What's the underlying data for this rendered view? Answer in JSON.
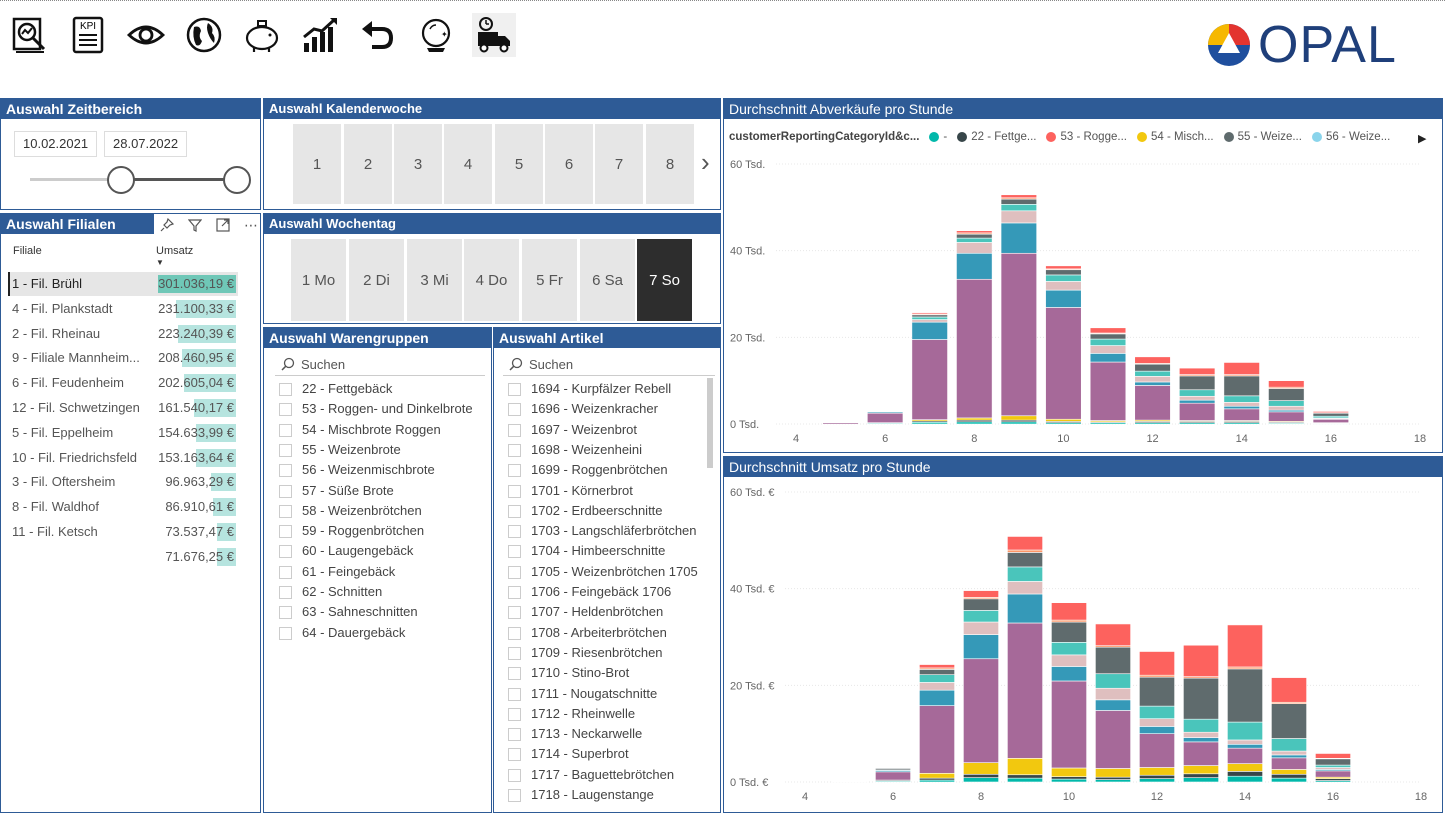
{
  "toolbar": {
    "icons": [
      "report-analysis-icon",
      "kpi-icon",
      "eye-icon",
      "globe-icon",
      "piggy-bank-icon",
      "growth-chart-icon",
      "undo-icon",
      "crystal-ball-icon",
      "delivery-truck-icon"
    ],
    "kpi_label": "KPI"
  },
  "logo": {
    "text": "OPAL",
    "colors": [
      "#f6b800",
      "#e3342f",
      "#1f4f9e"
    ]
  },
  "zeitbereich": {
    "title": "Auswahl Zeitbereich",
    "start": "10.02.2021",
    "end": "28.07.2022"
  },
  "kalenderwoche": {
    "title": "Auswahl Kalenderwoche",
    "weeks": [
      "1",
      "2",
      "3",
      "4",
      "5",
      "6",
      "7",
      "8"
    ],
    "next": "›"
  },
  "wochentag": {
    "title": "Auswahl Wochentag",
    "days": [
      "1 Mo",
      "2 Di",
      "3 Mi",
      "4 Do",
      "5 Fr",
      "6 Sa",
      "7 So"
    ],
    "selected": "7 So"
  },
  "filialen": {
    "title": "Auswahl Filialen",
    "col_filiale": "Filiale",
    "col_umsatz": "Umsatz",
    "rows": [
      {
        "name": "1 - Fil. Brühl",
        "umsatz": "301.036,19 €",
        "share": 1.0,
        "selected": true
      },
      {
        "name": "4 - Fil. Plankstadt",
        "umsatz": "231.100,33 €",
        "share": 0.77
      },
      {
        "name": "2 - Fil. Rheinau",
        "umsatz": "223.240,39 €",
        "share": 0.74
      },
      {
        "name": "9 - Filiale Mannheim...",
        "umsatz": "208.460,95 €",
        "share": 0.69
      },
      {
        "name": "6 - Fil. Feudenheim",
        "umsatz": "202.605,04 €",
        "share": 0.67
      },
      {
        "name": "12 - Fil. Schwetzingen",
        "umsatz": "161.540,17 €",
        "share": 0.54
      },
      {
        "name": "5 - Fil. Eppelheim",
        "umsatz": "154.633,99 €",
        "share": 0.51
      },
      {
        "name": "10 - Fil. Friedrichsfeld",
        "umsatz": "153.163,64 €",
        "share": 0.51
      },
      {
        "name": "3 - Fil. Oftersheim",
        "umsatz": "96.963,29 €",
        "share": 0.32
      },
      {
        "name": "8 - Fil. Waldhof",
        "umsatz": "86.910,61 €",
        "share": 0.29
      },
      {
        "name": "11 - Fil. Ketsch",
        "umsatz": "73.537,47 €",
        "share": 0.24
      },
      {
        "name": "",
        "umsatz": "71.676,25 €",
        "share": 0.24
      }
    ]
  },
  "warengruppen": {
    "title": "Auswahl Warengruppen",
    "search_placeholder": "Suchen",
    "items": [
      "22 - Fettgebäck",
      "53 - Roggen- und Dinkelbrote",
      "54 - Mischbrote Roggen",
      "55 - Weizenbrote",
      "56 - Weizenmischbrote",
      "57 - Süße Brote",
      "58 - Weizenbrötchen",
      "59 - Roggenbrötchen",
      "60 - Laugengebäck",
      "61 - Feingebäck",
      "62 - Schnitten",
      "63 - Sahneschnitten",
      "64 - Dauergebäck"
    ]
  },
  "artikel": {
    "title": "Auswahl Artikel",
    "search_placeholder": "Suchen",
    "items": [
      "1694 - Kurpfälzer Rebell",
      "1696 - Weizenkracher",
      "1697 - Weizenbrot",
      "1698 - Weizenheini",
      "1699 - Roggenbrötchen",
      "1701 - Körnerbrot",
      "1702 - Erdbeerschnitte",
      "1703 - Langschläferbrötchen",
      "1704 - Himbeerschnitte",
      "1705 - Weizenbrötchen 1705",
      "1706 - Feingebäck 1706",
      "1707 - Heldenbrötchen",
      "1708 - Arbeiterbrötchen",
      "1709 - Riesenbrötchen",
      "1710 - Stino-Brot",
      "1711 - Nougatschnitte",
      "1712 - Rheinwelle",
      "1713 - Neckarwelle",
      "1714 - Superbrot",
      "1717 - Baguettebrötchen",
      "1718 - Laugenstange"
    ]
  },
  "legend": {
    "title": "customerReportingCategoryId&c...",
    "items": [
      {
        "label": "-",
        "color": "#01b8aa"
      },
      {
        "label": "22 - Fettge...",
        "color": "#374649"
      },
      {
        "label": "53 - Rogge...",
        "color": "#fd625e"
      },
      {
        "label": "54 - Misch...",
        "color": "#f2c80f"
      },
      {
        "label": "55 - Weize...",
        "color": "#5f6b6d"
      },
      {
        "label": "56 - Weize...",
        "color": "#8ad4eb"
      }
    ],
    "more": "▶"
  },
  "chart_data": [
    {
      "type": "bar",
      "title": "Durchschnitt Abverkäufe pro Stunde",
      "x": [
        5,
        6,
        7,
        8,
        9,
        10,
        11,
        12,
        13,
        14,
        15,
        16
      ],
      "xticks": [
        "4",
        "6",
        "8",
        "10",
        "12",
        "14",
        "16",
        "18"
      ],
      "yticks": [
        "0 Tsd.",
        "20 Tsd.",
        "40 Tsd.",
        "60 Tsd."
      ],
      "ylim": [
        0,
        60000
      ],
      "xlim": [
        4,
        18
      ],
      "series_colors": [
        "#01b8aa",
        "#374649",
        "#f2c80f",
        "#a66999",
        "#3599b8",
        "#dfbfbf",
        "#4ac5bb",
        "#5f6b6d",
        "#fe9666",
        "#fd625e"
      ],
      "stacks": [
        [
          0,
          0,
          0,
          300,
          0,
          0,
          0,
          0,
          0,
          0
        ],
        [
          200,
          100,
          0,
          2200,
          300,
          0,
          100,
          100,
          0,
          0
        ],
        [
          400,
          300,
          300,
          18500,
          4000,
          600,
          600,
          500,
          200,
          300
        ],
        [
          500,
          400,
          500,
          32000,
          6000,
          2500,
          1000,
          900,
          300,
          500
        ],
        [
          500,
          400,
          1000,
          37500,
          7000,
          2800,
          1500,
          1200,
          300,
          700
        ],
        [
          300,
          300,
          500,
          25800,
          4000,
          2000,
          1500,
          1200,
          200,
          700
        ],
        [
          300,
          200,
          300,
          13500,
          2000,
          1800,
          1500,
          1200,
          200,
          1200
        ],
        [
          300,
          300,
          300,
          8000,
          800,
          1300,
          1200,
          1600,
          200,
          1500
        ],
        [
          300,
          300,
          200,
          4000,
          700,
          900,
          1500,
          3200,
          300,
          1500
        ],
        [
          300,
          300,
          200,
          2700,
          600,
          900,
          1500,
          4600,
          300,
          2800
        ],
        [
          200,
          200,
          200,
          2200,
          400,
          900,
          1300,
          2800,
          300,
          1500
        ],
        [
          100,
          100,
          100,
          800,
          100,
          200,
          400,
          700,
          100,
          300
        ]
      ]
    },
    {
      "type": "bar",
      "title": "Durchschnitt Umsatz pro Stunde",
      "x": [
        5,
        6,
        7,
        8,
        9,
        10,
        11,
        12,
        13,
        14,
        15,
        16
      ],
      "xticks": [
        "4",
        "6",
        "8",
        "10",
        "12",
        "14",
        "16",
        "18"
      ],
      "yticks": [
        "0 Tsd. €",
        "20 Tsd. €",
        "40 Tsd. €",
        "60 Tsd. €"
      ],
      "ylim": [
        0,
        60000
      ],
      "xlim": [
        4,
        18
      ],
      "series_colors": [
        "#01b8aa",
        "#374649",
        "#f2c80f",
        "#a66999",
        "#3599b8",
        "#dfbfbf",
        "#4ac5bb",
        "#5f6b6d",
        "#fe9666",
        "#fd625e"
      ],
      "stacks": [
        [
          0,
          0,
          0,
          100,
          0,
          0,
          0,
          0,
          0,
          0
        ],
        [
          200,
          200,
          0,
          1700,
          300,
          0,
          100,
          300,
          0,
          0
        ],
        [
          400,
          400,
          1000,
          14000,
          3200,
          1600,
          1600,
          1100,
          300,
          700
        ],
        [
          900,
          700,
          2400,
          21500,
          5000,
          2600,
          2400,
          2400,
          300,
          1400
        ],
        [
          800,
          700,
          3400,
          28000,
          6000,
          2600,
          3000,
          3000,
          500,
          2800
        ],
        [
          600,
          500,
          1800,
          18000,
          3000,
          2400,
          2600,
          4200,
          400,
          3600
        ],
        [
          500,
          500,
          1800,
          12000,
          2200,
          2400,
          3000,
          5500,
          300,
          4500
        ],
        [
          700,
          700,
          1600,
          7000,
          1500,
          1600,
          2600,
          6000,
          400,
          4900
        ],
        [
          900,
          800,
          1700,
          4900,
          900,
          1100,
          2700,
          8500,
          300,
          6500
        ],
        [
          1200,
          1000,
          1600,
          3200,
          800,
          900,
          3700,
          11000,
          400,
          8700
        ],
        [
          800,
          800,
          1000,
          2400,
          600,
          800,
          2600,
          7200,
          300,
          5100
        ],
        [
          300,
          400,
          300,
          1300,
          300,
          400,
          500,
          1300,
          100,
          1000
        ]
      ]
    }
  ]
}
